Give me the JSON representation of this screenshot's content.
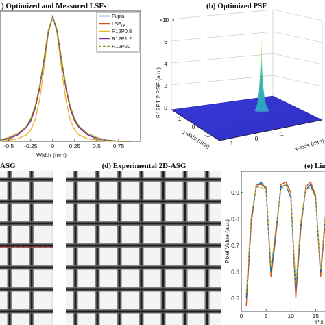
{
  "chart_data": [
    {
      "panel": "a",
      "type": "line",
      "title": ") Optimized and Measured LSFs",
      "xlabel": "Width (mm)",
      "ylabel": "",
      "xlim": [
        -0.6,
        1.0
      ],
      "ylim": [
        0,
        1
      ],
      "xticks": [
        "-0.5",
        "-0.25",
        "0",
        "0.25",
        "0.5",
        "0.75"
      ],
      "xtick_values": [
        -0.5,
        -0.25,
        0,
        0.25,
        0.5,
        0.75
      ],
      "x": [
        -0.6,
        -0.5,
        -0.4,
        -0.3,
        -0.25,
        -0.2,
        -0.15,
        -0.1,
        -0.05,
        0,
        0.05,
        0.1,
        0.15,
        0.2,
        0.25,
        0.3,
        0.4,
        0.5,
        0.6,
        0.75,
        0.9
      ],
      "series": [
        {
          "name": "Fujita",
          "color": "#1f77b4",
          "dash": "",
          "values": [
            0.01,
            0.02,
            0.05,
            0.11,
            0.17,
            0.27,
            0.43,
            0.65,
            0.88,
            1.0,
            0.88,
            0.65,
            0.43,
            0.27,
            0.17,
            0.11,
            0.05,
            0.02,
            0.01,
            0.0,
            0.0
          ]
        },
        {
          "name": "LSF_LP",
          "color": "#d95319",
          "dash": "",
          "values": [
            0.01,
            0.03,
            0.06,
            0.12,
            0.18,
            0.28,
            0.44,
            0.66,
            0.89,
            1.0,
            0.89,
            0.66,
            0.44,
            0.28,
            0.18,
            0.12,
            0.06,
            0.03,
            0.01,
            0.0,
            0.0
          ]
        },
        {
          "name": "R12P0.8",
          "color": "#edb120",
          "dash": "",
          "values": [
            0.0,
            0.01,
            0.02,
            0.05,
            0.09,
            0.17,
            0.33,
            0.58,
            0.86,
            1.0,
            0.86,
            0.58,
            0.33,
            0.17,
            0.09,
            0.05,
            0.02,
            0.01,
            0.0,
            0.0,
            0.0
          ]
        },
        {
          "name": "R12P1.2",
          "color": "#7e2f8e",
          "dash": "",
          "values": [
            0.01,
            0.02,
            0.05,
            0.11,
            0.16,
            0.26,
            0.42,
            0.64,
            0.88,
            1.0,
            0.88,
            0.64,
            0.42,
            0.26,
            0.16,
            0.11,
            0.05,
            0.02,
            0.01,
            0.0,
            0.0
          ]
        },
        {
          "name": "R12P2L",
          "color": "#77ac30",
          "dash": "4,2",
          "values": [
            0.01,
            0.03,
            0.06,
            0.12,
            0.18,
            0.28,
            0.44,
            0.66,
            0.89,
            1.0,
            0.89,
            0.66,
            0.44,
            0.28,
            0.18,
            0.12,
            0.06,
            0.03,
            0.01,
            0.0,
            0.0
          ]
        }
      ],
      "legend": "top-right"
    },
    {
      "panel": "b",
      "type": "surface",
      "title": "(b) Optimized PSF",
      "zlabel": "R12P1.2 PSF (a.u.)",
      "xlabel": "x-axis (mm)",
      "ylabel": "y-axis (mm)",
      "scale_label": "×10⁻⁴",
      "zticks": [
        "8",
        "6",
        "4",
        "2",
        "0"
      ],
      "yticks": [
        "1",
        "0",
        "-1"
      ],
      "xticks": [
        "1",
        "0",
        "-1"
      ],
      "surface_color": "#3a3adf",
      "peak_color": "#f5e61c"
    },
    {
      "panel": "c",
      "type": "image",
      "title": "ASG",
      "has_profile_line": true,
      "profile_color": "#d62728"
    },
    {
      "panel": "d",
      "type": "image",
      "title": "(d) Experimental 2D-ASG"
    },
    {
      "panel": "e",
      "type": "line",
      "title": "(e) Lin",
      "xlabel": "Pix",
      "ylabel": "Pixel Value (a.u.)",
      "xlim": [
        0,
        18
      ],
      "ylim": [
        0.45,
        0.98
      ],
      "xticks": [
        "0",
        "5",
        "10",
        "15"
      ],
      "xtick_values": [
        0,
        5,
        10,
        15
      ],
      "yticks": [
        "0.9",
        "0.8",
        "0.7",
        "0.6",
        "0.5"
      ],
      "ytick_values": [
        0.9,
        0.8,
        0.7,
        0.6,
        0.5
      ],
      "x": [
        1,
        2,
        3,
        4,
        5,
        6,
        7,
        8,
        9,
        10,
        11,
        12,
        13,
        14,
        15,
        16,
        17,
        18
      ],
      "series": [
        {
          "color": "#d95319",
          "dash": "",
          "values": [
            0.47,
            0.78,
            0.93,
            0.93,
            0.92,
            0.58,
            0.74,
            0.93,
            0.94,
            0.9,
            0.5,
            0.76,
            0.92,
            0.94,
            0.89,
            0.58,
            0.8,
            0.9
          ]
        },
        {
          "color": "#0072bd",
          "dash": "",
          "values": [
            0.5,
            0.8,
            0.92,
            0.94,
            0.91,
            0.6,
            0.76,
            0.92,
            0.93,
            0.88,
            0.53,
            0.78,
            0.91,
            0.93,
            0.88,
            0.6,
            0.82,
            0.9
          ]
        },
        {
          "color": "#edb120",
          "dash": "4,2",
          "values": [
            0.52,
            0.81,
            0.92,
            0.92,
            0.91,
            0.62,
            0.77,
            0.91,
            0.93,
            0.89,
            0.55,
            0.79,
            0.91,
            0.92,
            0.88,
            0.61,
            0.82,
            0.89
          ]
        }
      ]
    }
  ]
}
